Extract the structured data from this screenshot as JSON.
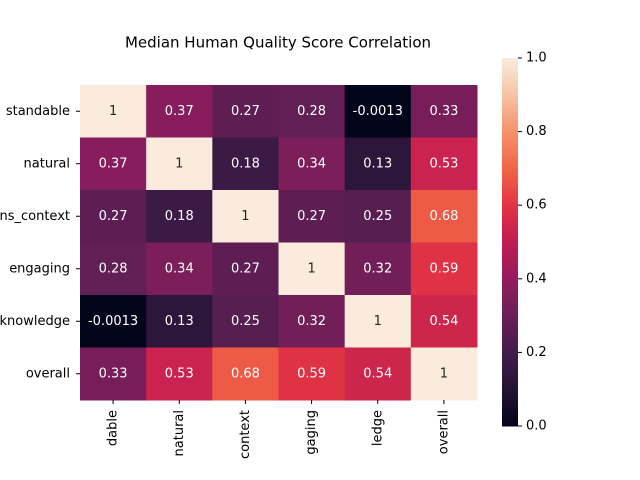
{
  "chart_data": {
    "type": "heatmap",
    "title": "Median Human Quality Score Correlation",
    "x_categories": [
      "dable",
      "natural",
      "context",
      "gaging",
      "ledge",
      "overall"
    ],
    "y_categories": [
      "standable",
      "natural",
      "ns_context",
      "engaging",
      "knowledge",
      "overall"
    ],
    "values": [
      [
        1,
        0.37,
        0.27,
        0.28,
        -0.0013,
        0.33
      ],
      [
        0.37,
        1,
        0.18,
        0.34,
        0.13,
        0.53
      ],
      [
        0.27,
        0.18,
        1,
        0.27,
        0.25,
        0.68
      ],
      [
        0.28,
        0.34,
        0.27,
        1,
        0.32,
        0.59
      ],
      [
        -0.0013,
        0.13,
        0.25,
        0.32,
        1,
        0.54
      ],
      [
        0.33,
        0.53,
        0.68,
        0.59,
        0.54,
        1
      ]
    ],
    "colormap": "rocket",
    "clim": [
      0,
      1
    ],
    "cticks": [
      {
        "value": 0,
        "label": "0.0"
      },
      {
        "value": 0.2,
        "label": "0.2"
      },
      {
        "value": 0.4,
        "label": "0.4"
      },
      {
        "value": 0.6,
        "label": "0.6"
      },
      {
        "value": 0.8,
        "label": "0.8"
      },
      {
        "value": 1,
        "label": "1.0"
      }
    ]
  }
}
